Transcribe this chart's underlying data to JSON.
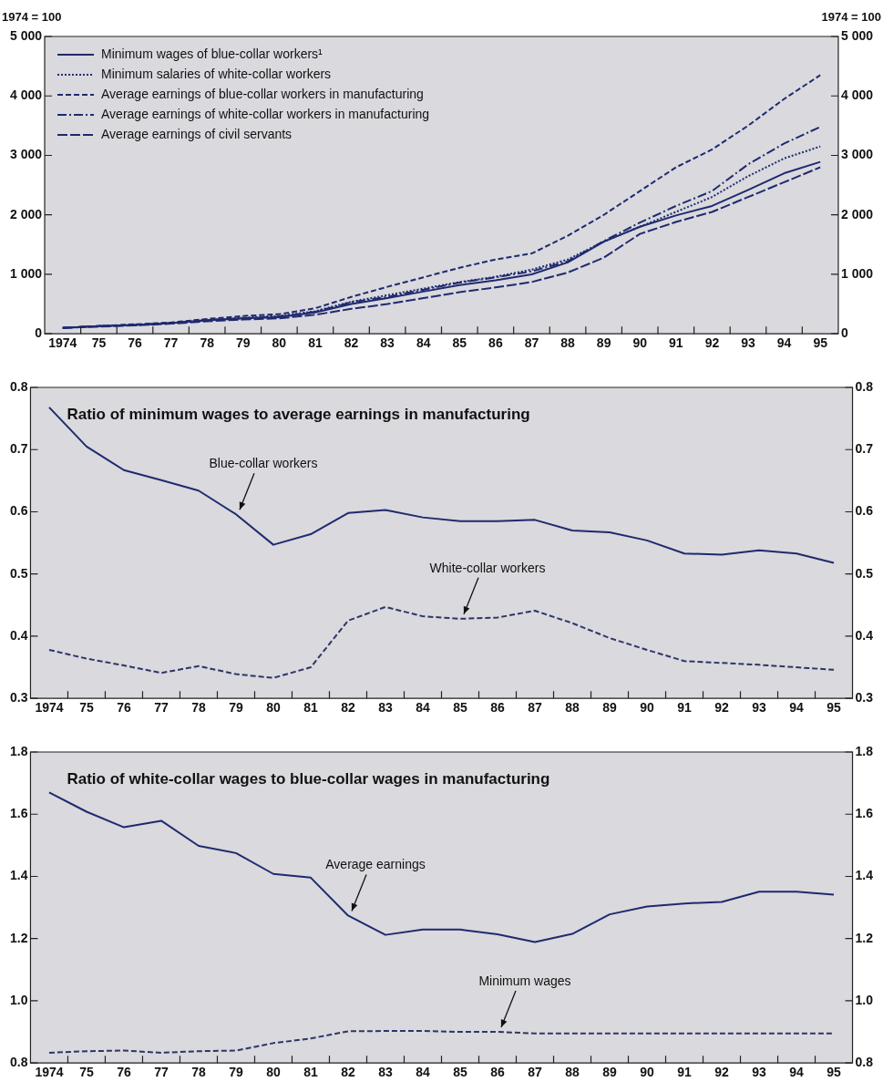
{
  "chart_data": [
    {
      "type": "line",
      "ylabel": "1974 = 100",
      "y2label": "1974 = 100",
      "categories": [
        "1974",
        "75",
        "76",
        "77",
        "78",
        "79",
        "80",
        "81",
        "82",
        "83",
        "84",
        "85",
        "86",
        "87",
        "88",
        "89",
        "90",
        "91",
        "92",
        "93",
        "94",
        "95"
      ],
      "series": [
        {
          "name": "Minimum wages of blue-collar workers¹",
          "color": "#1f2a6e",
          "line_style": "solid",
          "values": [
            100,
            130,
            150,
            180,
            230,
            260,
            280,
            360,
            500,
            600,
            710,
            820,
            900,
            1000,
            1200,
            1550,
            1800,
            1990,
            2150,
            2420,
            2700,
            2890
          ]
        },
        {
          "name": "Minimum salaries of white-collar workers",
          "color": "#1f2a6e",
          "line_style": "dotted",
          "values": [
            100,
            130,
            150,
            180,
            230,
            270,
            300,
            380,
            540,
            650,
            760,
            870,
            960,
            1080,
            1250,
            1550,
            1800,
            2050,
            2300,
            2650,
            2950,
            3150
          ]
        },
        {
          "name": "Average earnings of blue-collar workers in manufacturing",
          "color": "#1f2a6e",
          "line_style": "dashed",
          "values": [
            100,
            130,
            160,
            190,
            250,
            300,
            330,
            430,
            620,
            790,
            950,
            1110,
            1250,
            1350,
            1650,
            2000,
            2400,
            2800,
            3100,
            3500,
            3950,
            4350
          ]
        },
        {
          "name": "Average earnings of white-collar workers in manufacturing",
          "color": "#1f2a6e",
          "line_style": "dashdot",
          "values": [
            100,
            130,
            150,
            180,
            230,
            260,
            290,
            370,
            530,
            620,
            740,
            860,
            950,
            1050,
            1220,
            1560,
            1870,
            2150,
            2400,
            2850,
            3200,
            3480
          ]
        },
        {
          "name": "Average earnings of civil servants",
          "color": "#1f2a6e",
          "line_style": "longdash",
          "values": [
            100,
            120,
            140,
            170,
            210,
            240,
            260,
            320,
            420,
            500,
            600,
            700,
            780,
            870,
            1030,
            1280,
            1680,
            1880,
            2050,
            2300,
            2550,
            2800
          ]
        }
      ],
      "ylim": [
        0,
        5000
      ],
      "yticks": [
        0,
        {
          "value": 1000,
          "label": "1 000"
        },
        {
          "value": 2000,
          "label": "2 000"
        },
        {
          "value": 3000,
          "label": "3 000"
        },
        {
          "value": 4000,
          "label": "4 000"
        },
        {
          "value": 5000,
          "label": "5 000"
        }
      ],
      "y2lim": [
        0,
        5000
      ],
      "y2ticks": [
        0,
        {
          "value": 1000,
          "label": "1 000"
        },
        {
          "value": 2000,
          "label": "2 000"
        },
        {
          "value": 3000,
          "label": "3 000"
        },
        {
          "value": 4000,
          "label": "4 000"
        },
        {
          "value": 5000,
          "label": "5 000"
        }
      ],
      "legend": "top left",
      "marker": "none"
    },
    {
      "type": "line",
      "title": "Ratio of minimum wages to average earnings in manufacturing",
      "categories": [
        "1974",
        "75",
        "76",
        "77",
        "78",
        "79",
        "80",
        "81",
        "82",
        "83",
        "84",
        "85",
        "86",
        "87",
        "88",
        "89",
        "90",
        "91",
        "92",
        "93",
        "94",
        "95"
      ],
      "series": [
        {
          "color": "#1f2a6e",
          "line_style": "solid",
          "values": [
            0.768,
            0.705,
            0.667,
            0.651,
            0.634,
            0.596,
            0.547,
            0.564,
            0.598,
            0.603,
            0.591,
            0.585,
            0.585,
            0.587,
            0.57,
            0.567,
            0.554,
            0.533,
            0.531,
            0.538,
            0.533,
            0.518
          ]
        },
        {
          "color": "#2e3566",
          "line_style": "dashed",
          "values": [
            0.378,
            0.364,
            0.353,
            0.341,
            0.352,
            0.339,
            0.333,
            0.35,
            0.425,
            0.447,
            0.432,
            0.428,
            0.43,
            0.441,
            0.421,
            0.397,
            0.378,
            0.36,
            0.357,
            0.354,
            0.35,
            0.346
          ]
        }
      ],
      "ylim": [
        0.3,
        0.8
      ],
      "yticks": [
        0.3,
        0.4,
        0.5,
        0.6,
        0.7,
        0.8
      ],
      "y2lim": [
        0.3,
        0.8
      ],
      "y2ticks": [
        0.3,
        0.4,
        0.5,
        0.6,
        0.7,
        0.8
      ],
      "annotations": [
        {
          "text": "Blue-collar workers",
          "x": "79",
          "y": 0.596
        },
        {
          "text": "White-collar workers",
          "x": "85",
          "y": 0.428
        }
      ],
      "marker": "none"
    },
    {
      "type": "line",
      "title": "Ratio of white-collar wages to blue-collar wages in manufacturing",
      "categories": [
        "1974",
        "75",
        "76",
        "77",
        "78",
        "79",
        "80",
        "81",
        "82",
        "83",
        "84",
        "85",
        "86",
        "87",
        "88",
        "89",
        "90",
        "91",
        "92",
        "93",
        "94",
        "95"
      ],
      "series": [
        {
          "color": "#1f2a6e",
          "line_style": "solid",
          "values": [
            1.67,
            1.608,
            1.558,
            1.579,
            1.498,
            1.475,
            1.408,
            1.396,
            1.274,
            1.212,
            1.229,
            1.229,
            1.214,
            1.189,
            1.215,
            1.278,
            1.303,
            1.313,
            1.318,
            1.351,
            1.351,
            1.341
          ]
        },
        {
          "color": "#2e3566",
          "line_style": "dashed",
          "values": [
            0.833,
            0.838,
            0.84,
            0.833,
            0.838,
            0.84,
            0.864,
            0.879,
            0.902,
            0.903,
            0.903,
            0.9,
            0.9,
            0.895,
            0.895,
            0.895,
            0.895,
            0.895,
            0.895,
            0.895,
            0.895,
            0.895
          ]
        }
      ],
      "ylim": [
        0.8,
        1.8
      ],
      "yticks": [
        0.8,
        {
          "value": 1,
          "label": "1.0"
        },
        1.2,
        1.4,
        1.6,
        1.8
      ],
      "y2lim": [
        0.8,
        1.8
      ],
      "y2ticks": [
        0.8,
        {
          "value": 1,
          "label": "1.0"
        },
        1.2,
        1.4,
        1.6,
        1.8
      ],
      "annotations": [
        {
          "text": "Average earnings",
          "x": "82",
          "y": 1.274
        },
        {
          "text": "Minimum wages",
          "x": "86",
          "y": 0.9
        }
      ],
      "marker": "none"
    }
  ]
}
